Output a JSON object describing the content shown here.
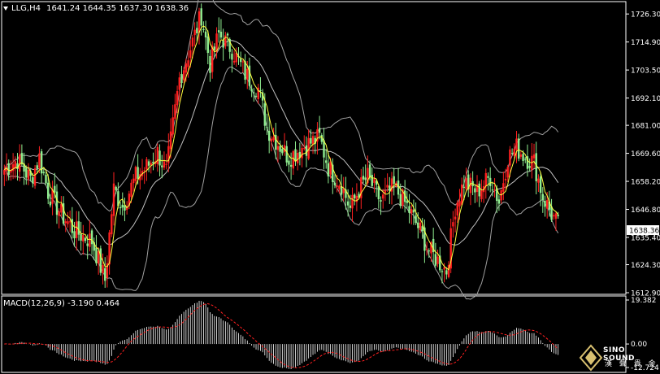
{
  "header": {
    "symbol": "LLG,H4",
    "ohlc": "1641.24 1644.35 1637.30 1638.36"
  },
  "macd": {
    "label": "MACD(12,26,9) -3.190 0.464",
    "axis": [
      "19.382",
      "0.00",
      "-12.724"
    ]
  },
  "price_axis": {
    "ticks": [
      "1726.30",
      "1714.90",
      "1703.50",
      "1692.10",
      "1681.00",
      "1669.60",
      "1658.20",
      "1646.80",
      "1635.40",
      "1624.30",
      "1612.90"
    ],
    "current": "1638.36"
  },
  "logo": {
    "name": "SINO SOUND",
    "subtitle": "漢 聲 貴 金"
  },
  "colors": {
    "up": "#ff2020",
    "down": "#90ee90",
    "ma_fast": "#ffff40",
    "bands": "#a0a0a0",
    "signal": "#ff2020"
  },
  "chart_data": {
    "type": "candlestick",
    "ylim": [
      1612.9,
      1730
    ],
    "anchors": [
      [
        0,
        1663
      ],
      [
        6,
        1667
      ],
      [
        12,
        1659
      ],
      [
        16,
        1668
      ],
      [
        20,
        1654
      ],
      [
        26,
        1645
      ],
      [
        32,
        1638
      ],
      [
        40,
        1634
      ],
      [
        46,
        1618
      ],
      [
        50,
        1655
      ],
      [
        54,
        1648
      ],
      [
        60,
        1660
      ],
      [
        66,
        1665
      ],
      [
        70,
        1670
      ],
      [
        74,
        1662
      ],
      [
        80,
        1700
      ],
      [
        86,
        1715
      ],
      [
        90,
        1726
      ],
      [
        94,
        1706
      ],
      [
        98,
        1718
      ],
      [
        104,
        1712
      ],
      [
        110,
        1702
      ],
      [
        116,
        1696
      ],
      [
        120,
        1680
      ],
      [
        124,
        1675
      ],
      [
        130,
        1668
      ],
      [
        136,
        1672
      ],
      [
        144,
        1676
      ],
      [
        148,
        1664
      ],
      [
        154,
        1657
      ],
      [
        158,
        1647
      ],
      [
        162,
        1655
      ],
      [
        166,
        1660
      ],
      [
        172,
        1650
      ],
      [
        178,
        1656
      ],
      [
        184,
        1648
      ],
      [
        190,
        1638
      ],
      [
        194,
        1630
      ],
      [
        198,
        1626
      ],
      [
        202,
        1622
      ],
      [
        206,
        1648
      ],
      [
        210,
        1658
      ],
      [
        216,
        1654
      ],
      [
        222,
        1660
      ],
      [
        226,
        1650
      ],
      [
        230,
        1668
      ],
      [
        234,
        1672
      ],
      [
        238,
        1668
      ],
      [
        242,
        1666
      ],
      [
        246,
        1652
      ],
      [
        250,
        1645
      ],
      [
        253,
        1640
      ]
    ]
  }
}
